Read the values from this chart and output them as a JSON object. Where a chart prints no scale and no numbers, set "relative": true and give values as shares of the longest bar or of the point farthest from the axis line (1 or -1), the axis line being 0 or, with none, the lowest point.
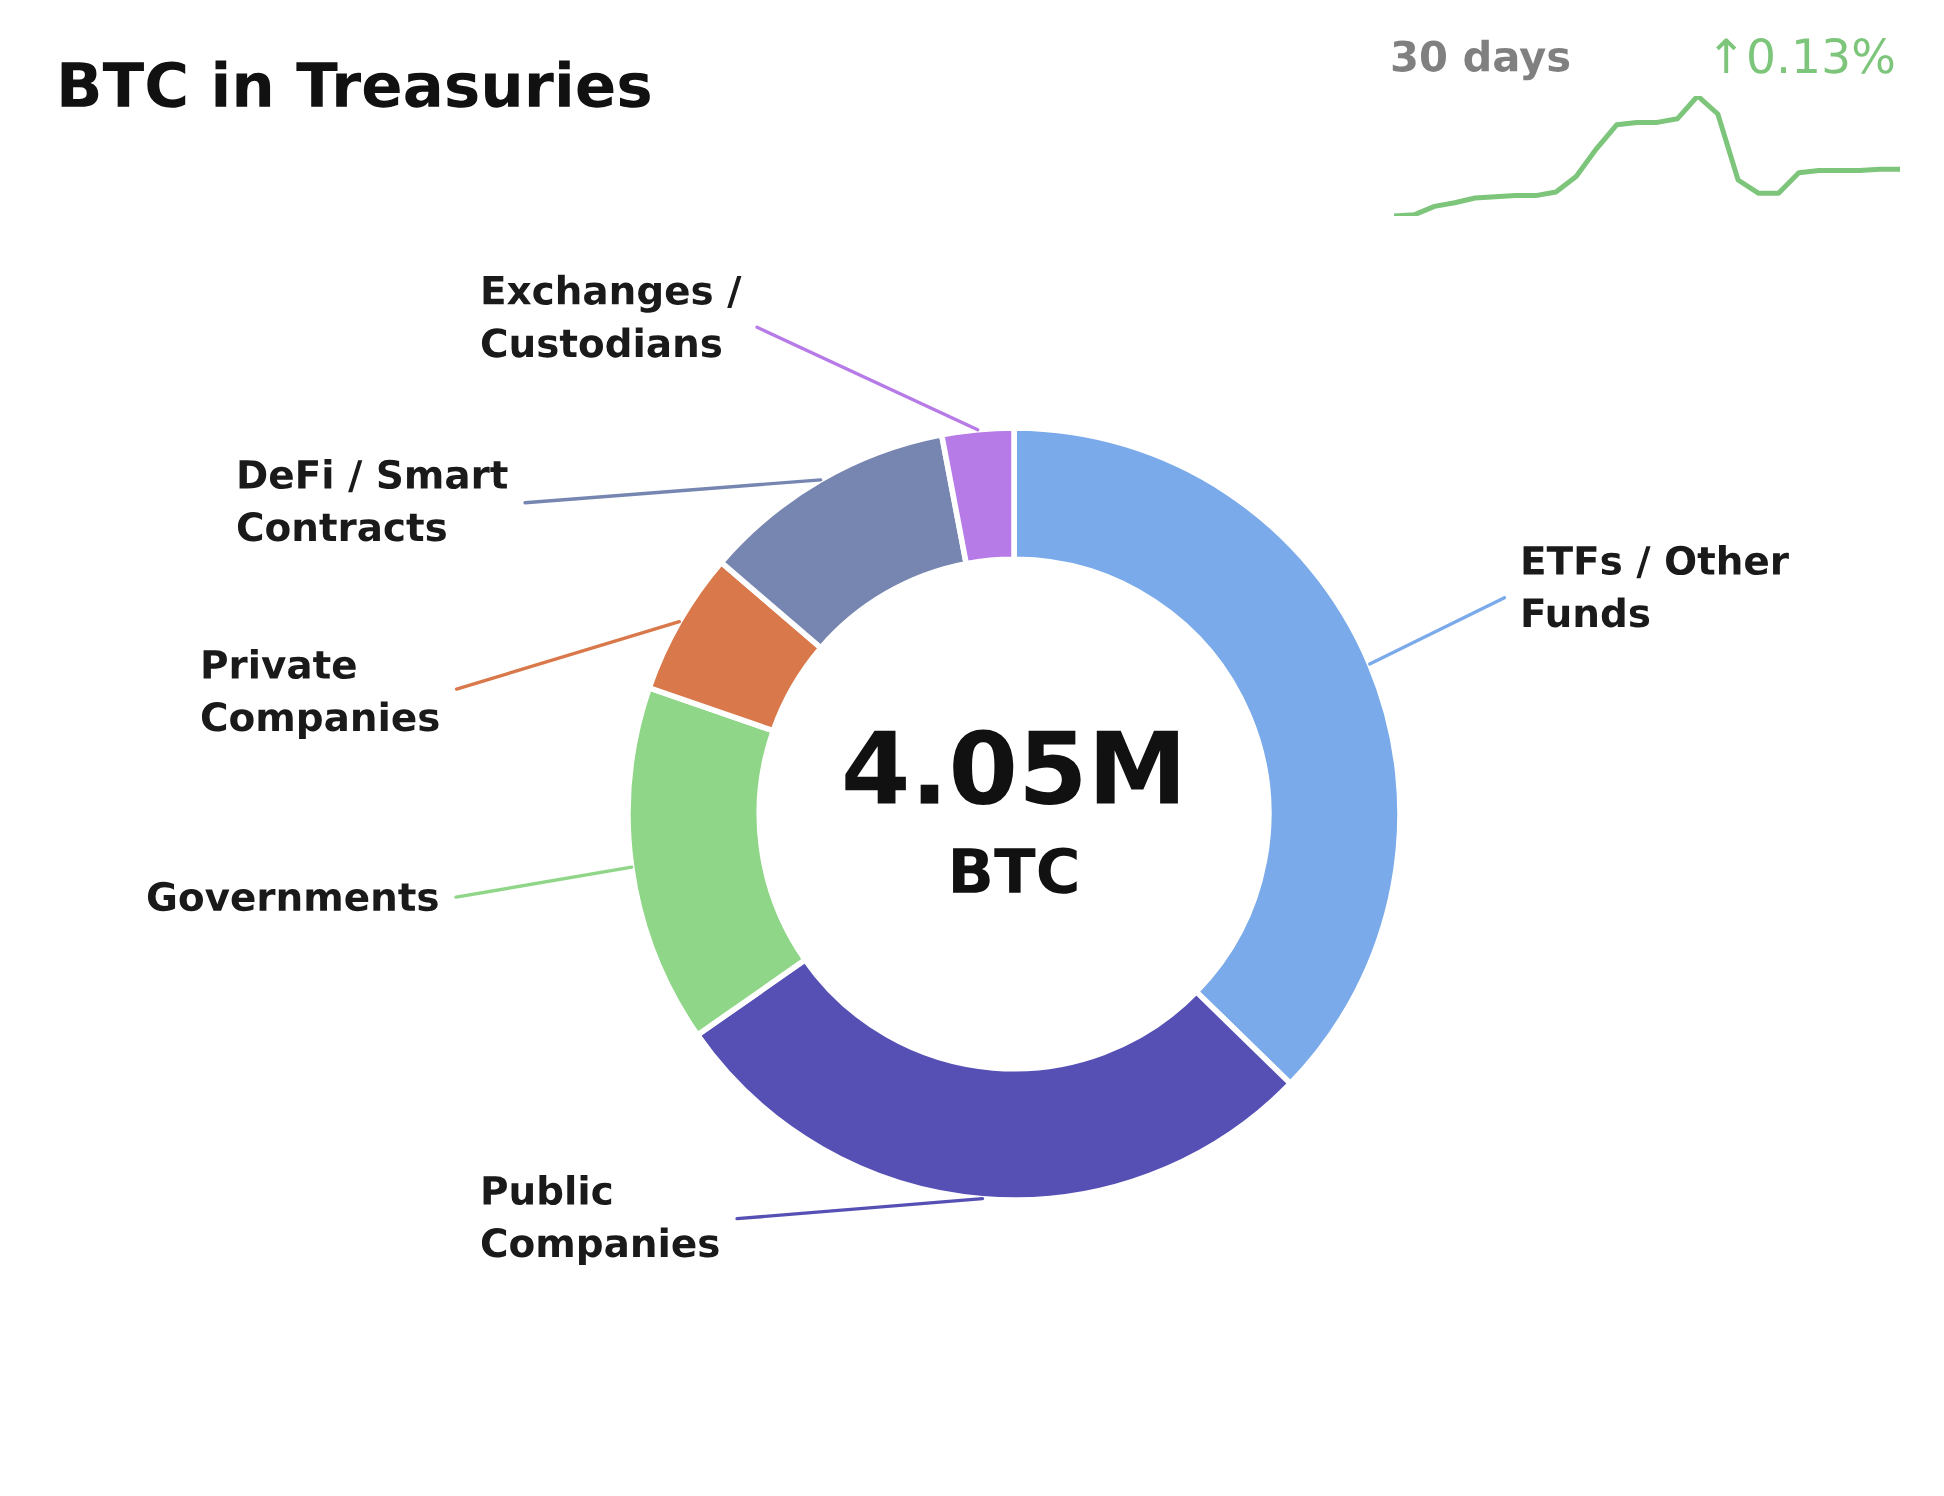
{
  "chart_data": [
    {
      "type": "donut",
      "title": "BTC in Treasuries",
      "categories": [
        "ETFs / Other\nFunds",
        "Public\nCompanies",
        "Governments",
        "Private\nCompanies",
        "DeFi / Smart\nContracts",
        "Exchanges /\nCustodians"
      ],
      "values": [
        37.3,
        28,
        15,
        6,
        10.7,
        3
      ],
      "colors": [
        "#7aaaea",
        "#5650b5",
        "#8fd688",
        "#d9784a",
        "#7686b0",
        "#b77be8"
      ],
      "annotations": [
        "4.05M",
        "BTC"
      ]
    },
    {
      "type": "line",
      "title": "30 days",
      "relative": true,
      "series": [
        {
          "color": "#7cc57a",
          "values": [
            0,
            0.01,
            0.08,
            0.11,
            0.15,
            0.16,
            0.17,
            0.17,
            0.2,
            0.33,
            0.56,
            0.76,
            0.78,
            0.78,
            0.81,
            1,
            0.85,
            0.3,
            0.19,
            0.19,
            0.36,
            0.38,
            0.38,
            0.38,
            0.39,
            0.39
          ]
        }
      ],
      "categories": [
        null,
        null,
        null,
        null,
        null,
        null,
        null,
        null,
        null,
        null,
        null,
        null,
        null,
        null,
        null,
        null,
        null,
        null,
        null,
        null,
        null,
        null,
        null,
        null,
        null,
        null
      ],
      "annotations": [
        "↑0.13%"
      ]
    }
  ]
}
